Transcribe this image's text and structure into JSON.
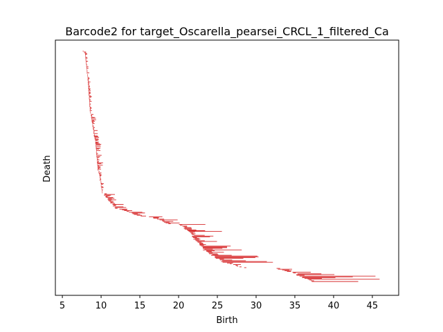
{
  "chart_data": {
    "type": "barcode",
    "title": "Barcode2 for target_Oscarella_pearsei_CRCL_1_filtered_Ca",
    "xlabel": "Birth",
    "ylabel": "Death",
    "xlim": [
      4.1,
      48.4
    ],
    "xticks": [
      5,
      10,
      15,
      20,
      25,
      30,
      35,
      40,
      45
    ],
    "xtick_labels": [
      "5",
      "10",
      "15",
      "20",
      "25",
      "30",
      "35",
      "40",
      "45"
    ],
    "bar_color": "#d62728",
    "grid": false,
    "bar_count": 300,
    "bar_ranges": [
      {
        "from_bar": 0,
        "to_bar": 3,
        "birth": [
          7.6,
          7.9
        ],
        "length": [
          0.1,
          0.3
        ]
      },
      {
        "from_bar": 3,
        "to_bar": 30,
        "birth": [
          7.9,
          8.2
        ],
        "length": [
          0.05,
          0.35
        ]
      },
      {
        "from_bar": 30,
        "to_bar": 80,
        "birth": [
          8.2,
          8.6
        ],
        "length": [
          0.05,
          0.35
        ]
      },
      {
        "from_bar": 80,
        "to_bar": 115,
        "birth": [
          8.6,
          9.2
        ],
        "length": [
          0.05,
          0.6
        ]
      },
      {
        "from_bar": 115,
        "to_bar": 155,
        "birth": [
          9.2,
          9.6
        ],
        "length": [
          0.05,
          0.8
        ]
      },
      {
        "from_bar": 155,
        "to_bar": 185,
        "birth": [
          9.6,
          10.2
        ],
        "length": [
          0.05,
          0.4
        ]
      },
      {
        "from_bar": 185,
        "to_bar": 205,
        "birth": [
          10.2,
          12.0
        ],
        "length": [
          0.3,
          1.6
        ]
      },
      {
        "from_bar": 205,
        "to_bar": 215,
        "birth": [
          12.2,
          15.2
        ],
        "length": [
          0.3,
          2.2
        ]
      },
      {
        "from_bar": 215,
        "to_bar": 225,
        "birth": [
          16.0,
          19.0
        ],
        "length": [
          0.3,
          2.5
        ]
      },
      {
        "from_bar": 225,
        "to_bar": 240,
        "birth": [
          20.0,
          22.0
        ],
        "length": [
          0.3,
          5.0
        ]
      },
      {
        "from_bar": 240,
        "to_bar": 258,
        "birth": [
          21.5,
          23.5
        ],
        "length": [
          0.5,
          4.0
        ]
      },
      {
        "from_bar": 258,
        "to_bar": 275,
        "birth": [
          23.0,
          26.0
        ],
        "length": [
          0.5,
          8.0
        ]
      },
      {
        "from_bar": 275,
        "to_bar": 282,
        "birth": [
          26.0,
          28.5
        ],
        "length": [
          0.2,
          1.0
        ]
      },
      {
        "from_bar": 282,
        "to_bar": 290,
        "birth": [
          32.3,
          35.5
        ],
        "length": [
          0.3,
          4.5
        ]
      },
      {
        "from_bar": 290,
        "to_bar": 300,
        "birth": [
          35.0,
          37.3
        ],
        "length": [
          0.3,
          10.0
        ]
      }
    ]
  }
}
